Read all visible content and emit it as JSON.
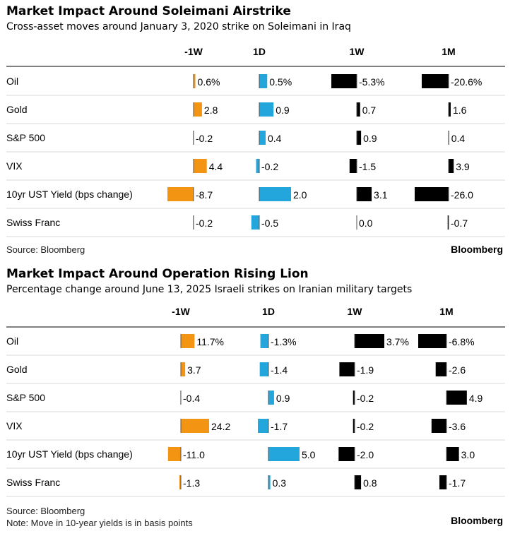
{
  "chart_data": [
    {
      "type": "bar",
      "title": "Market Impact Around Soleimani Airstrike",
      "subtitle": "Cross-asset moves around January 3, 2020 strike on Soleimani in Iraq",
      "columns": [
        "-1W",
        "1D",
        "1W",
        "1M"
      ],
      "categories": [
        "Oil",
        "Gold",
        "S&P 500",
        "VIX",
        "10yr UST Yield (bps change)",
        "Swiss Franc"
      ],
      "series": [
        {
          "name": "-1W",
          "values": [
            0.6,
            2.8,
            -0.2,
            4.4,
            -8.7,
            -0.2
          ],
          "labels": [
            "0.6%",
            "2.8",
            "-0.2",
            "4.4",
            "-8.7",
            "-0.2"
          ],
          "color": "#f39512"
        },
        {
          "name": "1D",
          "values": [
            0.5,
            0.9,
            0.4,
            -0.2,
            2.0,
            -0.5
          ],
          "labels": [
            "0.5%",
            "0.9",
            "0.4",
            "-0.2",
            "2.0",
            "-0.5"
          ],
          "color": "#23a6db"
        },
        {
          "name": "1W",
          "values": [
            -5.3,
            0.7,
            0.9,
            -1.5,
            3.1,
            0.0
          ],
          "labels": [
            "-5.3%",
            "0.7",
            "0.9",
            "-1.5",
            "3.1",
            "0.0"
          ],
          "color": "#000000"
        },
        {
          "name": "1M",
          "values": [
            -20.6,
            1.6,
            0.4,
            3.9,
            -26.0,
            -0.7
          ],
          "labels": [
            "-20.6%",
            "1.6",
            "0.4",
            "3.9",
            "-26.0",
            "-0.7"
          ],
          "color": "#000000"
        }
      ],
      "source": "Source: Bloomberg",
      "note": "",
      "brand": "Bloomberg"
    },
    {
      "type": "bar",
      "title": "Market Impact Around Operation Rising Lion",
      "subtitle": "Percentage change around June 13, 2025 Israeli strikes on Iranian military targets",
      "columns": [
        "-1W",
        "1D",
        "1W",
        "1M"
      ],
      "categories": [
        "Oil",
        "Gold",
        "S&P 500",
        "VIX",
        "10yr UST Yield (bps change)",
        "Swiss Franc"
      ],
      "series": [
        {
          "name": "-1W",
          "values": [
            11.7,
            3.7,
            -0.4,
            24.2,
            -11.0,
            -1.3
          ],
          "labels": [
            "11.7%",
            "3.7",
            "-0.4",
            "24.2",
            "-11.0",
            "-1.3"
          ],
          "color": "#f39512"
        },
        {
          "name": "1D",
          "values": [
            -1.3,
            -1.4,
            0.9,
            -1.7,
            5.0,
            0.3
          ],
          "labels": [
            "-1.3%",
            "-1.4",
            "0.9",
            "-1.7",
            "5.0",
            "0.3"
          ],
          "color": "#23a6db"
        },
        {
          "name": "1W",
          "values": [
            3.7,
            -1.9,
            -0.2,
            -0.2,
            -2.0,
            0.8
          ],
          "labels": [
            "3.7%",
            "-1.9",
            "-0.2",
            "-0.2",
            "-2.0",
            "0.8"
          ],
          "color": "#000000"
        },
        {
          "name": "1M",
          "values": [
            -6.8,
            -2.6,
            4.9,
            -3.6,
            3.0,
            -1.7
          ],
          "labels": [
            "-6.8%",
            "-2.6",
            "4.9",
            "-3.6",
            "3.0",
            "-1.7"
          ],
          "color": "#000000"
        }
      ],
      "source": "Source: Bloomberg",
      "note": "Note: Move in 10-year yields is in basis points",
      "brand": "Bloomberg"
    }
  ]
}
